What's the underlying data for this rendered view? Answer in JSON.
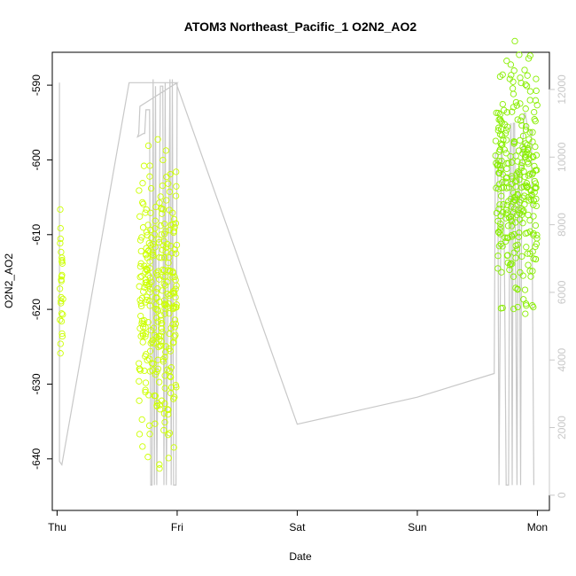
{
  "chart_data": {
    "type": "scatter",
    "title": "ATOM3 Northeast_Pacific_1 O2N2_AO2",
    "xlabel": "Date",
    "ylabel": "O2N2_AO2",
    "x_ticks": [
      "Thu",
      "Fri",
      "Sat",
      "Sun",
      "Mon"
    ],
    "xlim": [
      -0.04,
      4.1
    ],
    "y_ticks": [
      -590,
      -600,
      -610,
      -620,
      -630,
      -640
    ],
    "ylim": [
      -646.9,
      -585.6
    ],
    "y2_ticks": [
      0,
      2000,
      4000,
      6000,
      8000,
      10000,
      12000
    ],
    "y2lim": [
      -450,
      13100
    ],
    "grid": false,
    "colors": {
      "early_points": "#ccff00",
      "late_points": "#88ee00",
      "secondary_line": "#c8c8c8"
    },
    "point_groups": [
      {
        "x_start": 0.02,
        "x_end": 0.05,
        "y_min": -635,
        "y_max": -601,
        "count": 26,
        "color": "#ccff00"
      },
      {
        "x_start": 0.68,
        "x_end": 1.0,
        "y_min": -645,
        "y_max": -592,
        "count": 300,
        "color": "#ccff00"
      },
      {
        "x_start": 3.65,
        "x_end": 4.0,
        "y_min": -626,
        "y_max": -581,
        "count": 300,
        "color": "#88ee00"
      }
    ],
    "secondary_series": {
      "x": [
        0.02,
        0.02,
        0.04,
        0.6,
        1.0,
        1.0,
        1.0,
        0.69,
        0.68,
        0.67,
        0.72,
        0.73,
        0.74,
        0.75,
        0.77,
        0.78,
        0.79,
        0.8,
        0.81,
        0.82,
        0.83,
        0.86,
        0.87,
        0.88,
        0.89,
        0.9,
        0.91,
        0.94,
        0.95,
        0.96,
        0.97,
        0.99,
        1.0,
        0.99,
        0.99,
        2.0,
        3.0,
        3.64,
        3.65,
        3.67,
        3.68,
        3.7,
        3.72,
        3.74,
        3.76,
        3.77,
        3.78,
        3.79,
        3.8,
        3.81,
        3.83,
        3.84,
        3.85,
        3.86,
        3.87,
        3.89,
        3.9,
        3.92,
        3.93,
        3.95,
        3.97
      ],
      "y": [
        12200,
        1000,
        900,
        12200,
        12200,
        12200,
        12200,
        11500,
        10700,
        10600,
        10700,
        10700,
        11400,
        11400,
        11400,
        300,
        300,
        12300,
        300,
        12100,
        300,
        12100,
        12100,
        12100,
        300,
        12200,
        300,
        12300,
        300,
        12300,
        300,
        300,
        12200,
        12200,
        12200,
        2100,
        2900,
        3600,
        10100,
        10100,
        300,
        10300,
        9400,
        300,
        300,
        9600,
        11000,
        300,
        11000,
        11000,
        300,
        9600,
        9600,
        300,
        9600,
        11300,
        11300,
        10800,
        10800,
        10800,
        300
      ]
    }
  }
}
